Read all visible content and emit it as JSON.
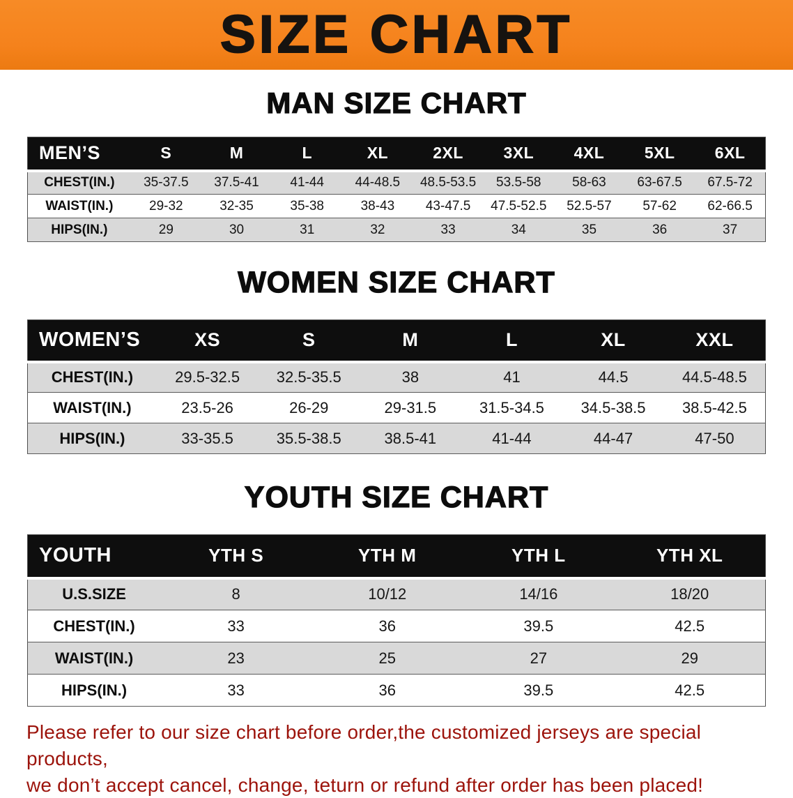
{
  "banner": {
    "title": "SIZE CHART",
    "bg_color": "#f5821c",
    "text_color": "#161310"
  },
  "colors": {
    "header_bar": "#0e0e0e",
    "row_stripe_gray": "#d9d9d9",
    "notice_red": "#9c130b"
  },
  "sections": [
    {
      "heading": "MAN SIZE CHART",
      "table": {
        "header": [
          "MEN’S",
          "S",
          "M",
          "L",
          "XL",
          "2XL",
          "3XL",
          "4XL",
          "5XL",
          "6XL"
        ],
        "rows": [
          [
            "CHEST(IN.)",
            "35-37.5",
            "37.5-41",
            "41-44",
            "44-48.5",
            "48.5-53.5",
            "53.5-58",
            "58-63",
            "63-67.5",
            "67.5-72"
          ],
          [
            "WAIST(IN.)",
            "29-32",
            "32-35",
            "35-38",
            "38-43",
            "43-47.5",
            "47.5-52.5",
            "52.5-57",
            "57-62",
            "62-66.5"
          ],
          [
            "HIPS(IN.)",
            "29",
            "30",
            "31",
            "32",
            "33",
            "34",
            "35",
            "36",
            "37"
          ]
        ]
      }
    },
    {
      "heading": "WOMEN SIZE CHART",
      "table": {
        "header": [
          "WOMEN’S",
          "XS",
          "S",
          "M",
          "L",
          "XL",
          "XXL"
        ],
        "rows": [
          [
            "CHEST(IN.)",
            "29.5-32.5",
            "32.5-35.5",
            "38",
            "41",
            "44.5",
            "44.5-48.5"
          ],
          [
            "WAIST(IN.)",
            "23.5-26",
            "26-29",
            "29-31.5",
            "31.5-34.5",
            "34.5-38.5",
            "38.5-42.5"
          ],
          [
            "HIPS(IN.)",
            "33-35.5",
            "35.5-38.5",
            "38.5-41",
            "41-44",
            "44-47",
            "47-50"
          ]
        ]
      }
    },
    {
      "heading": "YOUTH SIZE CHART",
      "table": {
        "header": [
          "YOUTH",
          "YTH S",
          "YTH M",
          "YTH L",
          "YTH XL"
        ],
        "rows": [
          [
            "U.S.SIZE",
            "8",
            "10/12",
            "14/16",
            "18/20"
          ],
          [
            "CHEST(IN.)",
            "33",
            "36",
            "39.5",
            "42.5"
          ],
          [
            "WAIST(IN.)",
            "23",
            "25",
            "27",
            "29"
          ],
          [
            "HIPS(IN.)",
            "33",
            "36",
            "39.5",
            "42.5"
          ]
        ]
      }
    }
  ],
  "footer": {
    "line1": "Please refer to our size chart before order,the customized jerseys are special products,",
    "line2": "we don’t accept cancel, change, teturn or refund after order has been placed!"
  }
}
